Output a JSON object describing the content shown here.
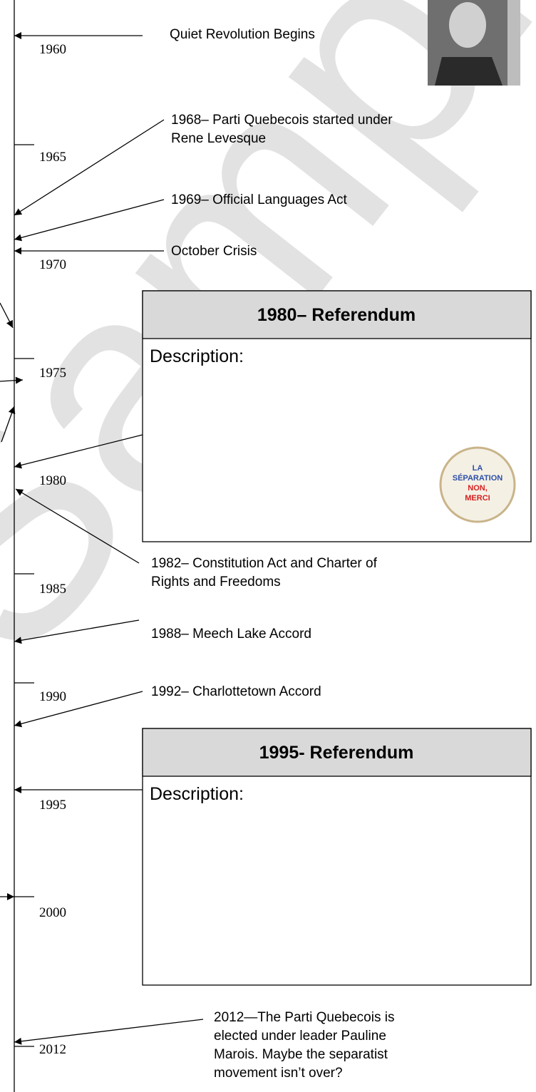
{
  "watermark": "Sample",
  "years": [
    "1960",
    "1965",
    "1970",
    "1975",
    "1980",
    "1985",
    "1990",
    "1995",
    "2000",
    "2012"
  ],
  "events": [
    {
      "lines": [
        "Quiet Revolution Begins"
      ]
    },
    {
      "lines": [
        "1968– Parti Quebecois started under",
        "Rene Levesque"
      ]
    },
    {
      "lines": [
        "1969– Official Languages Act"
      ]
    },
    {
      "lines": [
        "October Crisis"
      ]
    },
    {
      "lines": [
        "1982– Constitution Act and Charter of",
        "Rights and Freedoms"
      ]
    },
    {
      "lines": [
        "1988– Meech Lake Accord"
      ]
    },
    {
      "lines": [
        "1992– Charlottetown Accord"
      ]
    },
    {
      "lines": [
        "2012—The Parti Quebecois is",
        "elected under leader Pauline",
        "Marois.  Maybe the separatist",
        "movement isn’t over?"
      ]
    }
  ],
  "boxes": [
    {
      "title": "1980– Referendum",
      "body": "Description:"
    },
    {
      "title": "1995- Referendum",
      "body": "Description:"
    }
  ],
  "button": [
    "LA",
    "SÉPARATION",
    "NON,",
    "MERCI"
  ]
}
